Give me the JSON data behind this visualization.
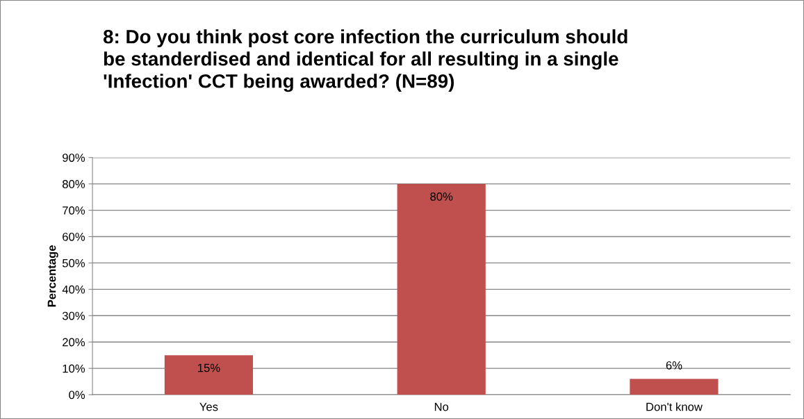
{
  "chart_data": {
    "type": "bar",
    "title": "8: Do you think post core infection the curriculum should\nbe standerdised and identical for all resulting in a single\n'Infection' CCT being awarded? (N=89)",
    "ylabel": "Percentage",
    "categories": [
      "Yes",
      "No",
      "Don't know"
    ],
    "values": [
      15,
      80,
      6
    ],
    "value_labels": [
      "15%",
      "80%",
      "6%"
    ],
    "color": "#c0504d",
    "ylim": [
      0,
      90
    ],
    "yticks": [
      {
        "value": 0,
        "label": "0%"
      },
      {
        "value": 10,
        "label": "10%"
      },
      {
        "value": 20,
        "label": "20%"
      },
      {
        "value": 30,
        "label": "30%"
      },
      {
        "value": 40,
        "label": "40%"
      },
      {
        "value": 50,
        "label": "50%"
      },
      {
        "value": 60,
        "label": "60%"
      },
      {
        "value": 70,
        "label": "70%"
      },
      {
        "value": 80,
        "label": "80%"
      },
      {
        "value": 90,
        "label": "90%"
      }
    ],
    "grid": "y"
  }
}
